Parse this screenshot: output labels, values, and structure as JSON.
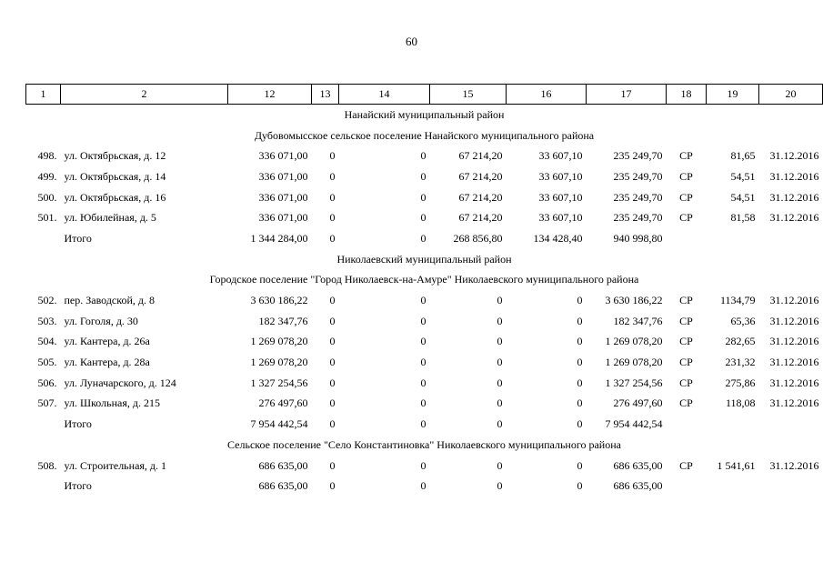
{
  "page_number": "60",
  "headers": [
    "1",
    "2",
    "12",
    "13",
    "14",
    "15",
    "16",
    "17",
    "18",
    "19",
    "20"
  ],
  "sections": [
    {
      "district": "Нанайский муниципальный район",
      "settlements": [
        {
          "name": "Дубовомысское сельское поселение Нанайского муниципального района",
          "rows": [
            {
              "num": "498.",
              "addr": "ул. Октябрьская, д. 12",
              "c12": "336 071,00",
              "c13": "0",
              "c14": "0",
              "c15": "67 214,20",
              "c16": "33 607,10",
              "c17": "235 249,70",
              "c18": "СР",
              "c19": "81,65",
              "c20": "31.12.2016"
            },
            {
              "num": "499.",
              "addr": "ул. Октябрьская, д. 14",
              "c12": "336 071,00",
              "c13": "0",
              "c14": "0",
              "c15": "67 214,20",
              "c16": "33 607,10",
              "c17": "235 249,70",
              "c18": "СР",
              "c19": "54,51",
              "c20": "31.12.2016"
            },
            {
              "num": "500.",
              "addr": "ул. Октябрьская, д. 16",
              "c12": "336 071,00",
              "c13": "0",
              "c14": "0",
              "c15": "67 214,20",
              "c16": "33 607,10",
              "c17": "235 249,70",
              "c18": "СР",
              "c19": "54,51",
              "c20": "31.12.2016"
            },
            {
              "num": "501.",
              "addr": "ул. Юбилейная, д. 5",
              "c12": "336 071,00",
              "c13": "0",
              "c14": "0",
              "c15": "67 214,20",
              "c16": "33 607,10",
              "c17": "235 249,70",
              "c18": "СР",
              "c19": "81,58",
              "c20": "31.12.2016"
            }
          ],
          "total": {
            "label": "Итого",
            "c12": "1 344 284,00",
            "c13": "0",
            "c14": "0",
            "c15": "268 856,80",
            "c16": "134 428,40",
            "c17": "940 998,80"
          }
        }
      ]
    },
    {
      "district": "Николаевский муниципальный район",
      "settlements": [
        {
          "name": "Городское поселение \"Город Николаевск-на-Амуре\" Николаевского муниципального района",
          "rows": [
            {
              "num": "502.",
              "addr": "пер. Заводской, д. 8",
              "c12": "3 630 186,22",
              "c13": "0",
              "c14": "0",
              "c15": "0",
              "c16": "0",
              "c17": "3 630 186,22",
              "c18": "СР",
              "c19": "1134,79",
              "c20": "31.12.2016"
            },
            {
              "num": "503.",
              "addr": "ул. Гоголя, д. 30",
              "c12": "182 347,76",
              "c13": "0",
              "c14": "0",
              "c15": "0",
              "c16": "0",
              "c17": "182 347,76",
              "c18": "СР",
              "c19": "65,36",
              "c20": "31.12.2016"
            },
            {
              "num": "504.",
              "addr": "ул. Кантера, д. 26а",
              "c12": "1 269 078,20",
              "c13": "0",
              "c14": "0",
              "c15": "0",
              "c16": "0",
              "c17": "1 269 078,20",
              "c18": "СР",
              "c19": "282,65",
              "c20": "31.12.2016"
            },
            {
              "num": "505.",
              "addr": "ул. Кантера, д. 28а",
              "c12": "1 269 078,20",
              "c13": "0",
              "c14": "0",
              "c15": "0",
              "c16": "0",
              "c17": "1 269 078,20",
              "c18": "СР",
              "c19": "231,32",
              "c20": "31.12.2016"
            },
            {
              "num": "506.",
              "addr": "ул. Луначарского, д. 124",
              "c12": "1 327 254,56",
              "c13": "0",
              "c14": "0",
              "c15": "0",
              "c16": "0",
              "c17": "1 327 254,56",
              "c18": "СР",
              "c19": "275,86",
              "c20": "31.12.2016"
            },
            {
              "num": "507.",
              "addr": "ул. Школьная, д. 215",
              "c12": "276 497,60",
              "c13": "0",
              "c14": "0",
              "c15": "0",
              "c16": "0",
              "c17": "276 497,60",
              "c18": "СР",
              "c19": "118,08",
              "c20": "31.12.2016"
            }
          ],
          "total": {
            "label": "Итого",
            "c12": "7 954 442,54",
            "c13": "0",
            "c14": "0",
            "c15": "0",
            "c16": "0",
            "c17": "7 954 442,54"
          }
        },
        {
          "name": "Сельское поселение \"Село Константиновка\" Николаевского муниципального района",
          "rows": [
            {
              "num": "508.",
              "addr": "ул. Строительная, д. 1",
              "c12": "686 635,00",
              "c13": "0",
              "c14": "0",
              "c15": "0",
              "c16": "0",
              "c17": "686 635,00",
              "c18": "СР",
              "c19": "1 541,61",
              "c20": "31.12.2016"
            }
          ],
          "total": {
            "label": "Итого",
            "c12": "686 635,00",
            "c13": "0",
            "c14": "0",
            "c15": "0",
            "c16": "0",
            "c17": "686 635,00"
          }
        }
      ]
    }
  ]
}
